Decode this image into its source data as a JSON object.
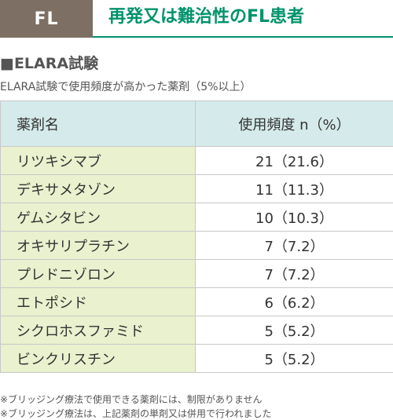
{
  "header": {
    "badge": "FL",
    "title": "再発又は難治性のFL患者"
  },
  "section": {
    "title": "■ELARA試験",
    "subtitle": "ELARA試験で使用頻度が高かった薬剤（5%以上）"
  },
  "table": {
    "col_name": "薬剤名",
    "col_freq": "使用頻度 n（%）",
    "rows": [
      {
        "name": "リツキシマブ",
        "freq": "21（21.6）"
      },
      {
        "name": "デキサメタゾン",
        "freq": "11（11.3）"
      },
      {
        "name": "ゲムシタビン",
        "freq": "10（10.3）"
      },
      {
        "name": "オキサリプラチン",
        "freq": "7（7.2）"
      },
      {
        "name": "プレドニゾロン",
        "freq": "7（7.2）"
      },
      {
        "name": "エトポシド",
        "freq": "6（6.2）"
      },
      {
        "name": "シクロホスファミド",
        "freq": "5（5.2）"
      },
      {
        "name": "ビンクリスチン",
        "freq": "5（5.2）"
      }
    ]
  },
  "footnotes": [
    "※ブリッジング療法で使用できる薬剤には、制限がありません",
    "※ブリッジング療法は、上記薬剤の単剤又は併用で行われました"
  ],
  "colors": {
    "badge_bg": "#7d6f63",
    "accent_green": "#00936b",
    "header_cell_bg": "#d5eaea",
    "name_cell_bg": "#e9f1ce"
  }
}
